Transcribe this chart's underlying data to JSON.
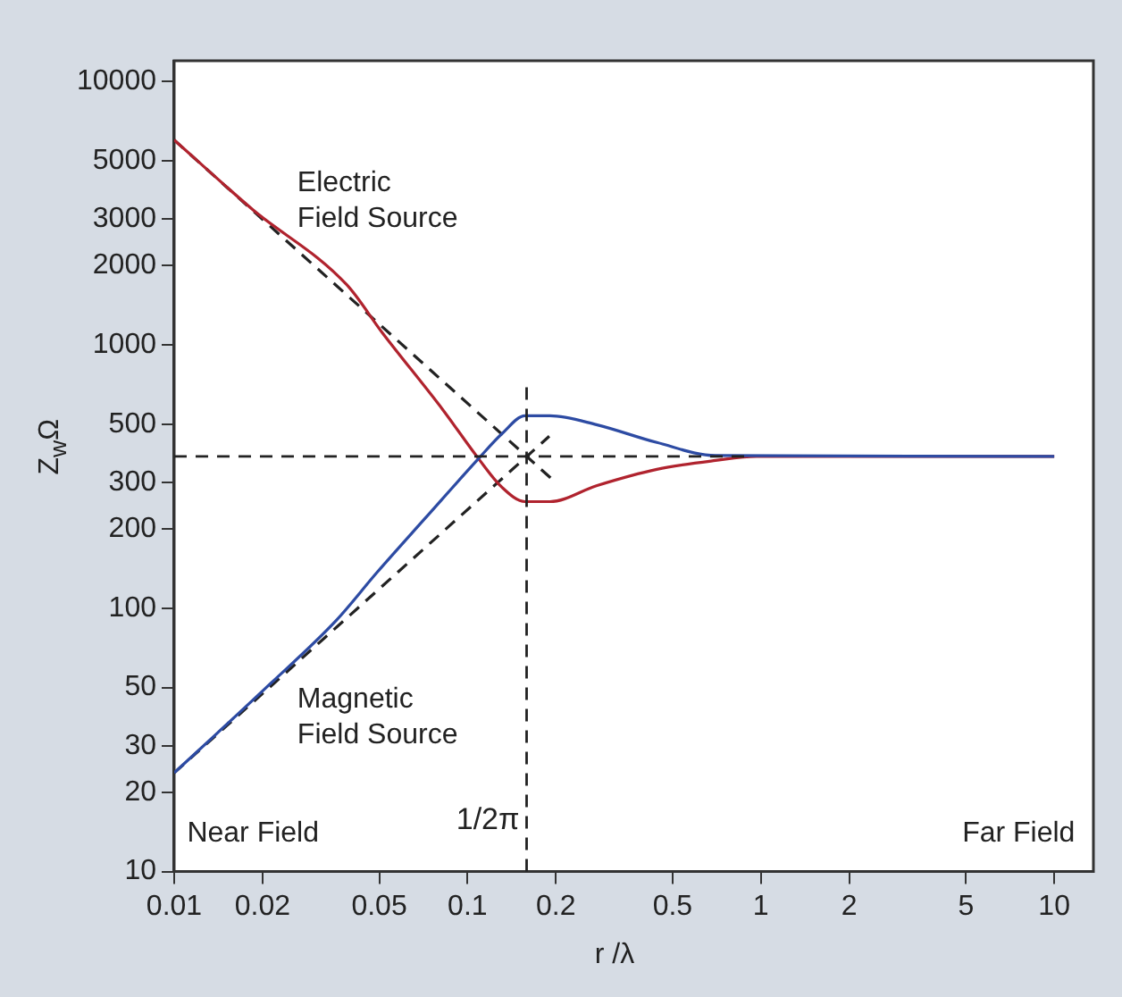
{
  "chart_data": {
    "type": "line",
    "xlabel": "r /λ",
    "ylabel": "Z$_{w}$Ω",
    "series": [
      {
        "color": "#2d4ba3",
        "x": [
          0.01,
          0.014,
          0.0204,
          0.0357,
          0.0492,
          0.0718,
          0.109,
          0.131,
          0.157,
          0.191,
          0.275,
          0.442,
          0.7,
          10
        ],
        "values": [
          23.7,
          33.5,
          49.5,
          90,
          137,
          220,
          370,
          460,
          538,
          538,
          498,
          426,
          380,
          377
        ]
      },
      {
        "color": "#b0232e",
        "x": [
          0.01,
          0.0185,
          0.0388,
          0.0513,
          0.0826,
          0.109,
          0.131,
          0.157,
          0.191,
          0.275,
          0.442,
          0.7,
          0.966,
          10
        ],
        "values": [
          6000,
          3270,
          1690,
          1110,
          565,
          370,
          288,
          254,
          254,
          292,
          337,
          364,
          377,
          377
        ]
      },
      {
        "color": "#222222",
        "line_style": "dashed",
        "x": [
          0.01,
          0.2
        ],
        "values": [
          6000,
          300
        ]
      },
      {
        "color": "#222222",
        "line_style": "dashed",
        "x": [
          0.01,
          0.19
        ],
        "values": [
          23.7,
          450
        ]
      }
    ],
    "ref_lines": [
      {
        "axis": "y",
        "value": 377,
        "line_style": "dashed",
        "color": "#222222"
      },
      {
        "axis": "x",
        "value": 0.159,
        "label": "1/2π",
        "line_style": "dashed",
        "color": "#222222"
      }
    ],
    "annotations": [
      "Electric Field Source",
      "Magnetic Field Source",
      "Near Field",
      "Far Field"
    ],
    "log": "xy",
    "xlim": [
      0.01,
      13.6
    ],
    "ylim": [
      10,
      12000
    ],
    "xticks": [
      0.01,
      0.02,
      0.05,
      0.1,
      0.2,
      0.5,
      1,
      2,
      5,
      10
    ],
    "yticks": [
      10,
      20,
      30,
      50,
      100,
      200,
      300,
      500,
      1000,
      2000,
      3000,
      5000,
      10000
    ],
    "grid": false,
    "legend": false,
    "marker": "none"
  }
}
